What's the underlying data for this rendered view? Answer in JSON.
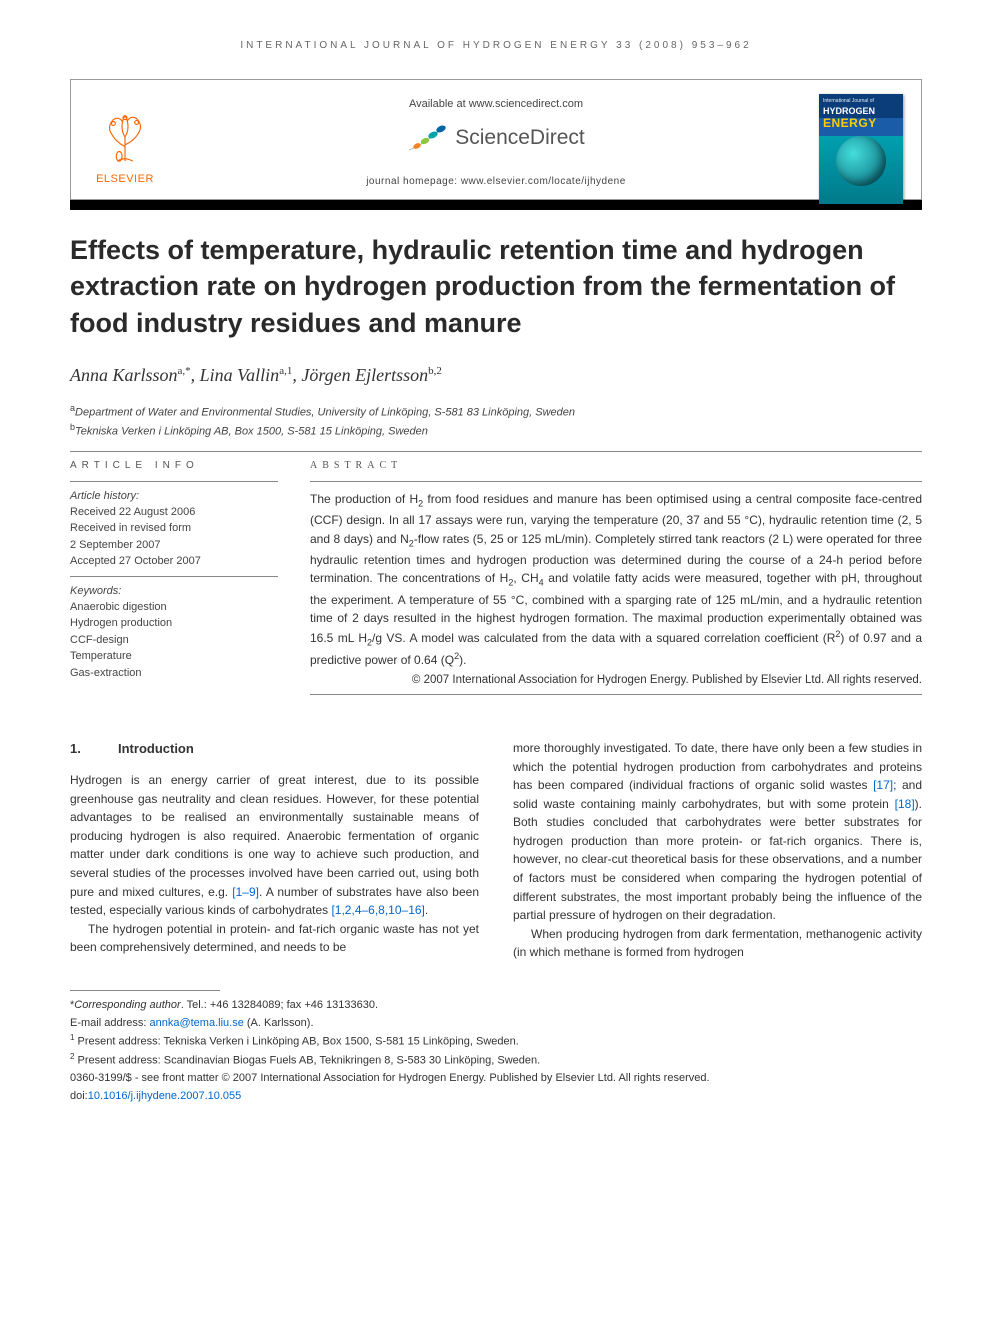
{
  "running_header": "INTERNATIONAL JOURNAL OF HYDROGEN ENERGY 33 (2008) 953–962",
  "top": {
    "available_at": "Available at www.sciencedirect.com",
    "sciencedirect": "ScienceDirect",
    "homepage_label": "journal homepage: ",
    "homepage_url": "www.elsevier.com/locate/ijhydene",
    "elsevier": "ELSEVIER",
    "cover": {
      "line1": "International Journal of",
      "hydrogen": "HYDROGEN",
      "energy": "ENERGY"
    }
  },
  "title": "Effects of temperature, hydraulic retention time and hydrogen extraction rate on hydrogen production from the fermentation of food industry residues and manure",
  "authors_html": "Anna Karlsson<sup>a,*</sup>, Lina Vallin<sup>a,1</sup>, Jörgen Ejlertsson<sup>b,2</sup>",
  "affiliations": {
    "a": "Department of Water and Environmental Studies, University of Linköping, S-581 83 Linköping, Sweden",
    "b": "Tekniska Verken i Linköping AB, Box 1500, S-581 15 Linköping, Sweden"
  },
  "article_info": {
    "label": "ARTICLE INFO",
    "history_head": "Article history:",
    "history": [
      "Received 22 August 2006",
      "Received in revised form",
      "2 September 2007",
      "Accepted 27 October 2007"
    ],
    "keywords_head": "Keywords:",
    "keywords": [
      "Anaerobic digestion",
      "Hydrogen production",
      "CCF-design",
      "Temperature",
      "Gas-extraction"
    ]
  },
  "abstract": {
    "label": "ABSTRACT",
    "text_html": "The production of H<sub>2</sub> from food residues and manure has been optimised using a central composite face-centred (CCF) design. In all 17 assays were run, varying the temperature (20, 37 and 55 °C), hydraulic retention time (2, 5 and 8 days) and N<sub>2</sub>-flow rates (5, 25 or 125 mL/min). Completely stirred tank reactors (2 L) were operated for three hydraulic retention times and hydrogen production was determined during the course of a 24-h period before termination. The concentrations of H<sub>2</sub>, CH<sub>4</sub> and volatile fatty acids were measured, together with pH, throughout the experiment. A temperature of 55 °C, combined with a sparging rate of 125 mL/min, and a hydraulic retention time of 2 days resulted in the highest hydrogen formation. The maximal production experimentally obtained was 16.5 mL H<sub>2</sub>/g VS. A model was calculated from the data with a squared correlation coefficient (R<sup>2</sup>) of 0.97 and a predictive power of 0.64 (Q<sup>2</sup>).",
    "copyright": "© 2007 International Association for Hydrogen Energy. Published by Elsevier Ltd. All rights reserved."
  },
  "section1": {
    "number": "1.",
    "title": "Introduction"
  },
  "body": {
    "col1_p1_html": "Hydrogen is an energy carrier of great interest, due to its possible greenhouse gas neutrality and clean residues. However, for these potential advantages to be realised an environmentally sustainable means of producing hydrogen is also required. Anaerobic fermentation of organic matter under dark conditions is one way to achieve such production, and several studies of the processes involved have been carried out, using both pure and mixed cultures, e.g. <span class=\"cite-link\">[1–9]</span>. A number of substrates have also been tested, especially various kinds of carbohydrates <span class=\"cite-link\">[1,2,4–6,8,10–16]</span>.",
    "col1_p2_html": "The hydrogen potential in protein- and fat-rich organic waste has not yet been comprehensively determined, and needs to be",
    "col2_p1_html": "more thoroughly investigated. To date, there have only been a few studies in which the potential hydrogen production from carbohydrates and proteins has been compared (individual fractions of organic solid wastes <span class=\"cite-link\">[17]</span>; and solid waste containing mainly carbohydrates, but with some protein <span class=\"cite-link\">[18]</span>). Both studies concluded that carbohydrates were better substrates for hydrogen production than more protein- or fat-rich organics. There is, however, no clear-cut theoretical basis for these observations, and a number of factors must be considered when comparing the hydrogen potential of different substrates, the most important probably being the influence of the partial pressure of hydrogen on their degradation.",
    "col2_p2_html": "When producing hydrogen from dark fermentation, methanogenic activity (in which methane is formed from hydrogen"
  },
  "footnotes": {
    "corresponding_html": "*<i>Corresponding author</i>. Tel.: +46 13284089; fax +46 13133630.",
    "email_label": "E-mail address: ",
    "email": "annka@tema.liu.se",
    "email_suffix": " (A. Karlsson).",
    "note1": "Present address: Tekniska Verken i Linköping AB, Box 1500, S-581 15 Linköping, Sweden.",
    "note2": "Present address: Scandinavian Biogas Fuels AB, Teknikringen 8, S-583 30 Linköping, Sweden.",
    "front_matter": "0360-3199/$ - see front matter © 2007 International Association for Hydrogen Energy. Published by Elsevier Ltd. All rights reserved.",
    "doi_label": "doi:",
    "doi": "10.1016/j.ijhydene.2007.10.055"
  },
  "colors": {
    "elsevier_orange": "#ff6600",
    "link_blue": "#0066cc",
    "sd_leaf1": "#f58220",
    "sd_leaf2": "#8dc63f",
    "sd_leaf3": "#00a4a6",
    "sd_leaf4": "#0066a1"
  }
}
